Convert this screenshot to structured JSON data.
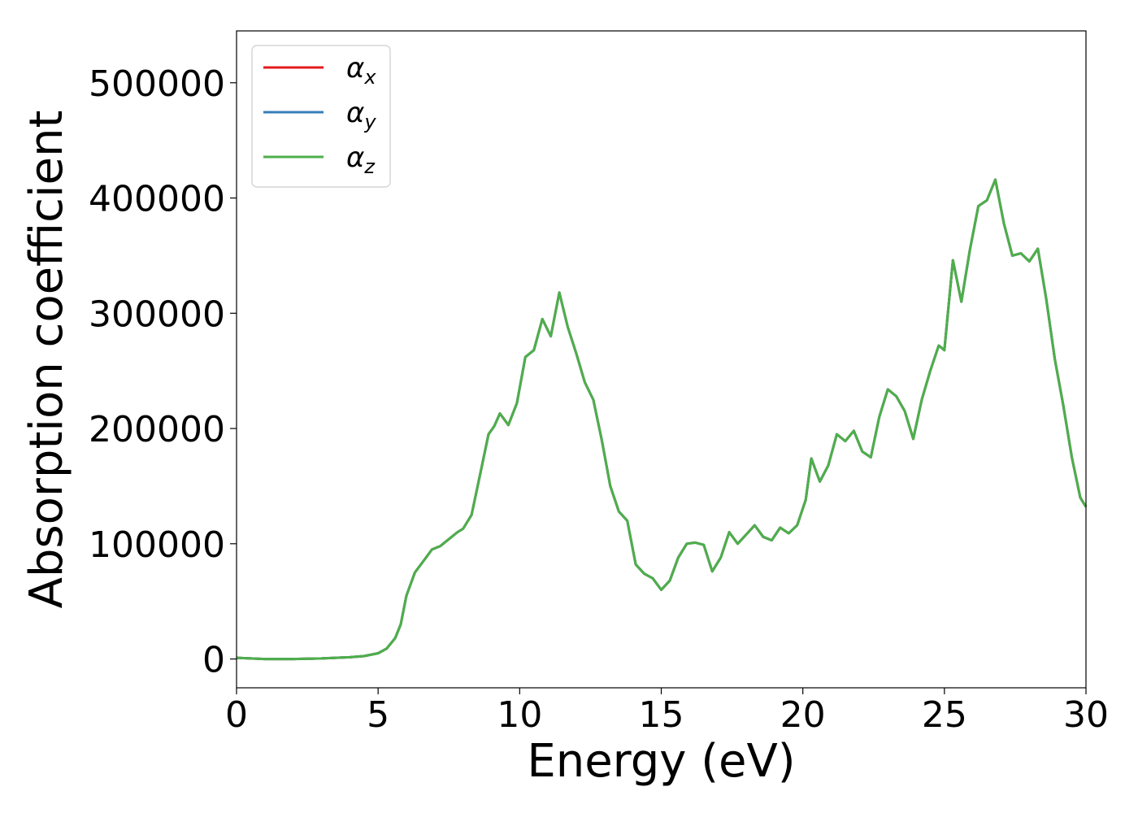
{
  "chart_data": {
    "type": "line",
    "title": "",
    "xlabel": "Energy (eV)",
    "ylabel": "Absorption coefficient",
    "xlim": [
      0,
      30
    ],
    "ylim": [
      -25000,
      545000
    ],
    "xticks": [
      0,
      5,
      10,
      15,
      20,
      25,
      30
    ],
    "xtick_labels": [
      "0",
      "5",
      "10",
      "15",
      "20",
      "25",
      "30"
    ],
    "yticks": [
      0,
      100000,
      200000,
      300000,
      400000,
      500000
    ],
    "ytick_labels": [
      "0",
      "100000",
      "200000",
      "300000",
      "400000",
      "500000"
    ],
    "grid": false,
    "legend_position": "top-left",
    "legend": [
      {
        "symbol": "α",
        "subscript": "x",
        "color": "#e41a1c"
      },
      {
        "symbol": "α",
        "subscript": "y",
        "color": "#377eb8"
      },
      {
        "symbol": "α",
        "subscript": "z",
        "color": "#4daf4a"
      }
    ],
    "x": [
      0,
      0.5,
      1,
      2,
      3,
      4,
      4.5,
      5,
      5.3,
      5.6,
      5.8,
      6.0,
      6.3,
      6.6,
      6.9,
      7.2,
      7.5,
      7.8,
      8.0,
      8.3,
      8.6,
      8.9,
      9.1,
      9.3,
      9.6,
      9.9,
      10.2,
      10.5,
      10.8,
      11.1,
      11.4,
      11.7,
      12.0,
      12.3,
      12.6,
      12.9,
      13.2,
      13.5,
      13.8,
      14.1,
      14.4,
      14.7,
      15.0,
      15.3,
      15.6,
      15.9,
      16.2,
      16.5,
      16.8,
      17.1,
      17.4,
      17.7,
      18.0,
      18.3,
      18.6,
      18.9,
      19.2,
      19.5,
      19.8,
      20.1,
      20.3,
      20.6,
      20.9,
      21.2,
      21.5,
      21.8,
      22.1,
      22.4,
      22.7,
      23.0,
      23.3,
      23.6,
      23.9,
      24.2,
      24.5,
      24.8,
      25.0,
      25.3,
      25.6,
      25.9,
      26.2,
      26.5,
      26.8,
      27.1,
      27.4,
      27.7,
      28.0,
      28.3,
      28.6,
      28.9,
      29.2,
      29.5,
      29.8,
      30.0
    ],
    "series": [
      {
        "name": "α_x",
        "color": "#e41a1c",
        "values": [
          1000,
          500,
          0,
          0,
          500,
          1500,
          2500,
          5000,
          9000,
          18000,
          30000,
          55000,
          75000,
          85000,
          95000,
          98000,
          104000,
          110000,
          113000,
          125000,
          160000,
          195000,
          202000,
          213000,
          203000,
          222000,
          262000,
          268000,
          295000,
          280000,
          318000,
          288000,
          265000,
          240000,
          225000,
          190000,
          150000,
          128000,
          120000,
          82000,
          74000,
          70000,
          60000,
          68000,
          88000,
          100000,
          101000,
          99000,
          76000,
          88000,
          110000,
          100000,
          108000,
          116000,
          106000,
          103000,
          114000,
          109000,
          116000,
          138000,
          174000,
          154000,
          168000,
          195000,
          189000,
          198000,
          180000,
          175000,
          210000,
          234000,
          228000,
          215000,
          191000,
          225000,
          250000,
          272000,
          268000,
          346000,
          310000,
          355000,
          393000,
          398000,
          416000,
          378000,
          350000,
          352000,
          345000,
          356000,
          312000,
          260000,
          220000,
          175000,
          140000,
          132000
        ]
      },
      {
        "name": "α_y",
        "color": "#377eb8",
        "values": [
          1000,
          500,
          0,
          0,
          500,
          1500,
          2500,
          5000,
          9000,
          18000,
          30000,
          55000,
          75000,
          85000,
          95000,
          98000,
          104000,
          110000,
          113000,
          125000,
          160000,
          195000,
          202000,
          213000,
          203000,
          222000,
          262000,
          268000,
          295000,
          280000,
          318000,
          288000,
          265000,
          240000,
          225000,
          190000,
          150000,
          128000,
          120000,
          82000,
          74000,
          70000,
          60000,
          68000,
          88000,
          100000,
          101000,
          99000,
          76000,
          88000,
          110000,
          100000,
          108000,
          116000,
          106000,
          103000,
          114000,
          109000,
          116000,
          138000,
          174000,
          154000,
          168000,
          195000,
          189000,
          198000,
          180000,
          175000,
          210000,
          234000,
          228000,
          215000,
          191000,
          225000,
          250000,
          272000,
          268000,
          346000,
          310000,
          355000,
          393000,
          398000,
          416000,
          378000,
          350000,
          352000,
          345000,
          356000,
          312000,
          260000,
          220000,
          175000,
          140000,
          132000
        ]
      },
      {
        "name": "α_z",
        "color": "#4daf4a",
        "values": [
          1000,
          500,
          0,
          0,
          500,
          1500,
          2500,
          5000,
          9000,
          18000,
          30000,
          55000,
          75000,
          85000,
          95000,
          98000,
          104000,
          110000,
          113000,
          125000,
          160000,
          195000,
          202000,
          213000,
          203000,
          222000,
          262000,
          268000,
          295000,
          280000,
          318000,
          288000,
          265000,
          240000,
          225000,
          190000,
          150000,
          128000,
          120000,
          82000,
          74000,
          70000,
          60000,
          68000,
          88000,
          100000,
          101000,
          99000,
          76000,
          88000,
          110000,
          100000,
          108000,
          116000,
          106000,
          103000,
          114000,
          109000,
          116000,
          138000,
          174000,
          154000,
          168000,
          195000,
          189000,
          198000,
          180000,
          175000,
          210000,
          234000,
          228000,
          215000,
          191000,
          225000,
          250000,
          272000,
          268000,
          346000,
          310000,
          355000,
          393000,
          398000,
          416000,
          378000,
          350000,
          352000,
          345000,
          356000,
          312000,
          260000,
          220000,
          175000,
          140000,
          132000
        ]
      }
    ]
  }
}
